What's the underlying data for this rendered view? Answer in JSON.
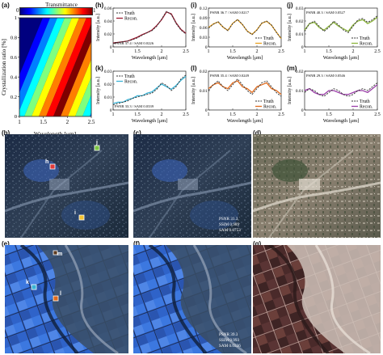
{
  "figure": {
    "panel_labels": {
      "a": "(a)",
      "h": "(h)",
      "i": "(i)",
      "j": "(j)",
      "k": "(k)",
      "l": "(l)",
      "m": "(m)",
      "b": "(b)",
      "c": "(c)",
      "d": "(d)",
      "e": "(e)",
      "f": "(f)",
      "g": "(g)"
    },
    "heatmap": {
      "colorbar_title": "Transmittance",
      "colorbar_ticks": [
        "0",
        "1"
      ],
      "ylabel": "Crystallization ratio [%]",
      "xlabel": "Wavelength [μm]",
      "xticks": [
        "1",
        "1.5",
        "2",
        "2.5"
      ],
      "yticks": [
        "0",
        "0.2",
        "0.4",
        "0.6",
        "0.8",
        "1"
      ]
    },
    "spectra_common": {
      "xlabel": "Wavelength [μm]",
      "ylabel": "Intensity [a.u.]",
      "legend_truth": "Truth",
      "legend_recon": "Recon.",
      "xticks": [
        "1",
        "1.5",
        "2",
        "2.5"
      ]
    },
    "maps": {
      "b_markers": {
        "h": "h",
        "i": "i",
        "j": "j"
      },
      "c_metrics": [
        "PSNR 31.3",
        "SSIM 0.989",
        "SAM 0.0753"
      ],
      "e_markers": {
        "k": "k",
        "l": "l",
        "m": "m"
      },
      "f_metrics": [
        "PSNR 39.3",
        "SSIM 0.993",
        "SAM 0.0336"
      ]
    }
  },
  "chart_data": [
    {
      "type": "heatmap",
      "panel": "a",
      "title": "",
      "xlabel": "Wavelength [μm]",
      "ylabel": "Crystallization ratio [%]",
      "xlim": [
        1,
        2.5
      ],
      "ylim": [
        0,
        1
      ],
      "colorbar": {
        "label": "Transmittance",
        "range": [
          0,
          1
        ]
      }
    },
    {
      "type": "line",
      "panel": "h",
      "metrics": "PSNR 37.4 / SAM 0.0226",
      "xlim": [
        1,
        2.5
      ],
      "ylim": [
        0,
        0.06
      ],
      "yticks": [
        "0",
        "0.02",
        "0.04",
        "0.06"
      ],
      "x": [
        1.0,
        1.1,
        1.2,
        1.3,
        1.4,
        1.5,
        1.6,
        1.7,
        1.8,
        1.9,
        2.0,
        2.1,
        2.2,
        2.3,
        2.4,
        2.5
      ],
      "series": [
        {
          "name": "Truth",
          "values": [
            0.005,
            0.007,
            0.008,
            0.009,
            0.011,
            0.014,
            0.018,
            0.022,
            0.025,
            0.032,
            0.043,
            0.055,
            0.05,
            0.036,
            0.026,
            0.02
          ]
        },
        {
          "name": "Recon.",
          "values": [
            0.006,
            0.007,
            0.008,
            0.009,
            0.012,
            0.015,
            0.019,
            0.022,
            0.026,
            0.033,
            0.042,
            0.054,
            0.051,
            0.037,
            0.027,
            0.021
          ]
        }
      ],
      "legend": "top-left",
      "recon_color": "#9e1b32"
    },
    {
      "type": "line",
      "panel": "i",
      "metrics": "PSNR 36.7 / SAM 0.0217",
      "xlim": [
        1,
        2.5
      ],
      "ylim": [
        0,
        0.12
      ],
      "yticks": [
        "0",
        "0.03",
        "0.06",
        "0.09",
        "0.12"
      ],
      "x": [
        1.0,
        1.1,
        1.2,
        1.3,
        1.4,
        1.5,
        1.6,
        1.7,
        1.8,
        1.9,
        2.0,
        2.1,
        2.2,
        2.3,
        2.4,
        2.5
      ],
      "series": [
        {
          "name": "Truth",
          "values": [
            0.058,
            0.07,
            0.078,
            0.062,
            0.05,
            0.072,
            0.085,
            0.07,
            0.048,
            0.038,
            0.052,
            0.074,
            0.08,
            0.068,
            0.045,
            0.025
          ]
        },
        {
          "name": "Recon.",
          "values": [
            0.06,
            0.071,
            0.077,
            0.061,
            0.051,
            0.073,
            0.084,
            0.069,
            0.049,
            0.039,
            0.053,
            0.073,
            0.079,
            0.067,
            0.046,
            0.026
          ]
        }
      ],
      "legend": "bottom-right",
      "recon_color": "#e8a020"
    },
    {
      "type": "line",
      "panel": "j",
      "metrics": "PSNR 40.3 / SAM 0.0527",
      "xlim": [
        1,
        2.5
      ],
      "ylim": [
        0,
        0.03
      ],
      "yticks": [
        "0",
        "0.01",
        "0.02",
        "0.03"
      ],
      "x": [
        1.0,
        1.1,
        1.2,
        1.3,
        1.4,
        1.5,
        1.6,
        1.7,
        1.8,
        1.9,
        2.0,
        2.1,
        2.2,
        2.3,
        2.4,
        2.5
      ],
      "series": [
        {
          "name": "Truth",
          "values": [
            0.012,
            0.018,
            0.02,
            0.016,
            0.012,
            0.015,
            0.02,
            0.017,
            0.013,
            0.011,
            0.016,
            0.021,
            0.022,
            0.019,
            0.021,
            0.024
          ]
        },
        {
          "name": "Recon.",
          "values": [
            0.013,
            0.018,
            0.019,
            0.015,
            0.013,
            0.016,
            0.019,
            0.016,
            0.014,
            0.012,
            0.017,
            0.02,
            0.021,
            0.018,
            0.02,
            0.023
          ]
        }
      ],
      "legend": "bottom-right",
      "recon_color": "#8cb43c"
    },
    {
      "type": "line",
      "panel": "k",
      "metrics": "PSNR 33.3 / SAM 0.0339",
      "xlim": [
        1,
        2.5
      ],
      "ylim": [
        0,
        0.03
      ],
      "yticks": [
        "0",
        "0.01",
        "0.02",
        "0.03"
      ],
      "x": [
        1.0,
        1.1,
        1.2,
        1.3,
        1.4,
        1.5,
        1.6,
        1.7,
        1.8,
        1.9,
        2.0,
        2.1,
        2.2,
        2.3,
        2.4,
        2.5
      ],
      "series": [
        {
          "name": "Truth",
          "values": [
            0.004,
            0.005,
            0.006,
            0.007,
            0.009,
            0.01,
            0.011,
            0.012,
            0.013,
            0.016,
            0.021,
            0.019,
            0.015,
            0.018,
            0.024,
            0.027
          ]
        },
        {
          "name": "Recon.",
          "values": [
            0.005,
            0.006,
            0.006,
            0.008,
            0.009,
            0.011,
            0.011,
            0.013,
            0.014,
            0.017,
            0.02,
            0.018,
            0.016,
            0.019,
            0.023,
            0.026
          ]
        }
      ],
      "legend": "top-left",
      "recon_color": "#3bb3d6"
    },
    {
      "type": "line",
      "panel": "l",
      "metrics": "PSNR 35.4 / SAM 0.0249",
      "xlim": [
        1,
        2.5
      ],
      "ylim": [
        0,
        0.02
      ],
      "yticks": [
        "0",
        "0.01",
        "0.02"
      ],
      "x": [
        1.0,
        1.1,
        1.2,
        1.3,
        1.4,
        1.5,
        1.6,
        1.7,
        1.8,
        1.9,
        2.0,
        2.1,
        2.2,
        2.3,
        2.4,
        2.5
      ],
      "series": [
        {
          "name": "Truth",
          "values": [
            0.01,
            0.013,
            0.015,
            0.012,
            0.01,
            0.013,
            0.016,
            0.013,
            0.01,
            0.008,
            0.011,
            0.014,
            0.015,
            0.012,
            0.009,
            0.007
          ]
        },
        {
          "name": "Recon.",
          "values": [
            0.011,
            0.013,
            0.014,
            0.012,
            0.011,
            0.014,
            0.015,
            0.012,
            0.011,
            0.009,
            0.012,
            0.013,
            0.014,
            0.011,
            0.01,
            0.008
          ]
        }
      ],
      "legend": "bottom-right",
      "recon_color": "#e06a1c"
    },
    {
      "type": "line",
      "panel": "m",
      "metrics": "PSNR 29.3 / SAM 0.0546",
      "xlim": [
        1,
        2.5
      ],
      "ylim": [
        0,
        0.02
      ],
      "yticks": [
        "0",
        "0.01",
        "0.02"
      ],
      "x": [
        1.0,
        1.1,
        1.2,
        1.3,
        1.4,
        1.5,
        1.6,
        1.7,
        1.8,
        1.9,
        2.0,
        2.1,
        2.2,
        2.3,
        2.4,
        2.5
      ],
      "series": [
        {
          "name": "Truth",
          "values": [
            0.009,
            0.011,
            0.01,
            0.008,
            0.007,
            0.009,
            0.011,
            0.01,
            0.008,
            0.007,
            0.008,
            0.01,
            0.011,
            0.01,
            0.012,
            0.014
          ]
        },
        {
          "name": "Recon.",
          "values": [
            0.01,
            0.011,
            0.009,
            0.008,
            0.008,
            0.01,
            0.01,
            0.009,
            0.008,
            0.008,
            0.009,
            0.01,
            0.01,
            0.009,
            0.011,
            0.013
          ]
        }
      ],
      "legend": "bottom-right",
      "recon_color": "#9b3fa8"
    }
  ]
}
